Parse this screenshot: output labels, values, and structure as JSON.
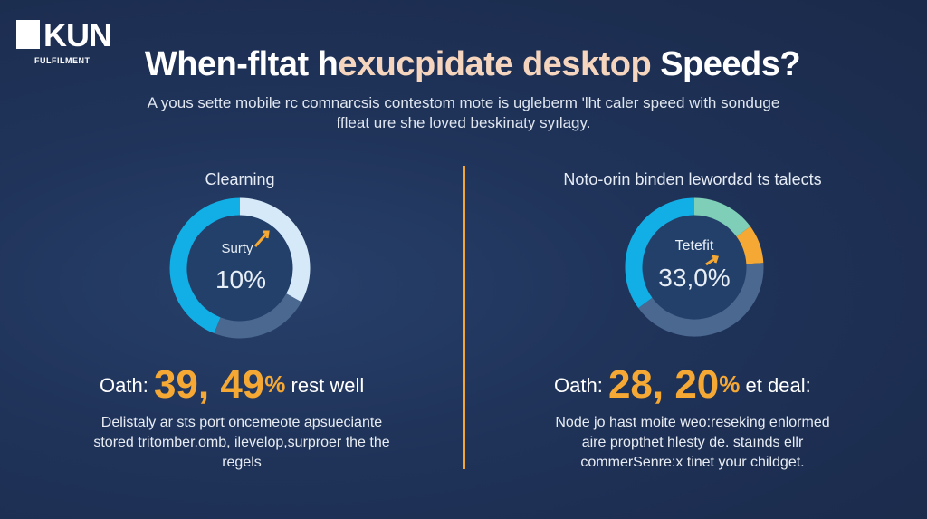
{
  "logo": {
    "text": "KUN",
    "sub": "FULFILMENT"
  },
  "header": {
    "title_a": "When-fltat h",
    "title_b": "exucpidate desktop",
    "title_c": " Speeds?",
    "subtitle": "A yous sette mobile rc comnarcsis contestom mote is ugleberm 'lht caler speed with sonduge ffleat ure she loved beskinaty syılagy."
  },
  "left": {
    "title": "Clearning",
    "center_label": "Surty",
    "center_value": "10%",
    "stat_prefix": "Oath:",
    "stat_value": "39, 49",
    "stat_pct": "%",
    "stat_suffix": "rest well",
    "description": "Delistaly ar sts port oncemeote apsueciante stored tritomber.omb, ilevelop,surproer the the regels"
  },
  "right": {
    "title": "Noto-orin binden lewordεd ts talects",
    "center_label": "Tetefit",
    "center_value": "33,0%",
    "stat_prefix": "Oath:",
    "stat_value": "28, 20",
    "stat_pct": "%",
    "stat_suffix": "et deal:",
    "description": "Node jo hast moite weo:reseking enlormed aire propthet hlesty de. staınds ellr commerSenre:x tinet your childget."
  },
  "chart_data": [
    {
      "type": "pie",
      "title": "Clearning",
      "center_text": "10%",
      "slices": [
        {
          "name": "light",
          "value": 33,
          "color": "#d5e9f8"
        },
        {
          "name": "slate",
          "value": 23,
          "color": "#4a6890"
        },
        {
          "name": "cyan",
          "value": 44,
          "color": "#12aee6"
        }
      ]
    },
    {
      "type": "pie",
      "title": "Noto-orin binden lewordεd ts talects",
      "center_text": "33,0%",
      "slices": [
        {
          "name": "teal",
          "value": 15,
          "color": "#7fcfb8"
        },
        {
          "name": "orange",
          "value": 9,
          "color": "#f5a833"
        },
        {
          "name": "slate",
          "value": 41,
          "color": "#4a6890"
        },
        {
          "name": "cyan",
          "value": 35,
          "color": "#12aee6"
        }
      ]
    }
  ]
}
